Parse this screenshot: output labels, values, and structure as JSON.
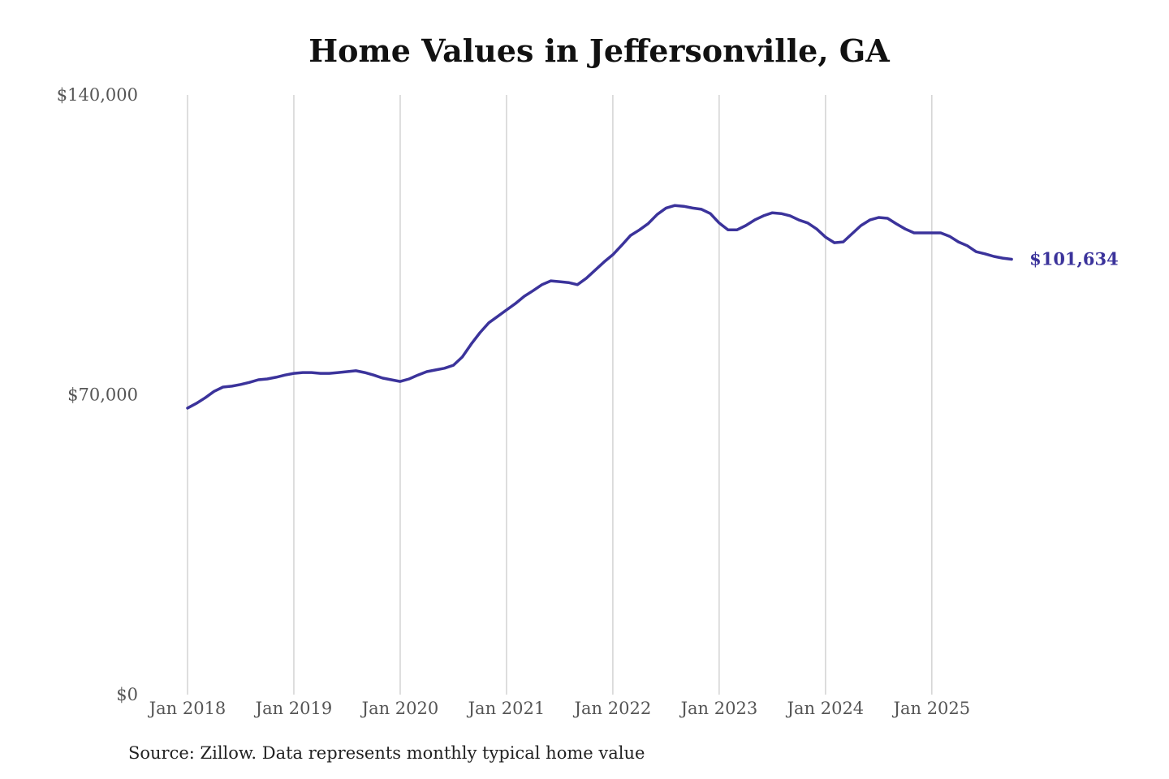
{
  "chart_data": {
    "type": "line",
    "title": "Home Values in Jeffersonville, GA",
    "source": "Source: Zillow. Data represents monthly typical home value",
    "xlabel": "",
    "ylabel": "",
    "ylim": [
      0,
      140000
    ],
    "y_ticks": [
      {
        "value": 0,
        "label": "$0"
      },
      {
        "value": 70000,
        "label": "$70,000"
      },
      {
        "value": 140000,
        "label": "$140,000"
      }
    ],
    "x_ticks": [
      {
        "date": "2018-01",
        "label": "Jan 2018"
      },
      {
        "date": "2019-01",
        "label": "Jan 2019"
      },
      {
        "date": "2020-01",
        "label": "Jan 2020"
      },
      {
        "date": "2021-01",
        "label": "Jan 2021"
      },
      {
        "date": "2022-01",
        "label": "Jan 2022"
      },
      {
        "date": "2023-01",
        "label": "Jan 2023"
      },
      {
        "date": "2024-01",
        "label": "Jan 2024"
      },
      {
        "date": "2025-01",
        "label": "Jan 2025"
      }
    ],
    "grid": "vertical",
    "line_color": "#3b339b",
    "end_label": "$101,634",
    "start_date": "2018-01",
    "series": [
      {
        "values": [
          66900,
          68000,
          69300,
          70800,
          71800,
          72000,
          72400,
          72900,
          73500,
          73700,
          74100,
          74600,
          75000,
          75200,
          75200,
          75000,
          75000,
          75200,
          75400,
          75600,
          75200,
          74600,
          73900,
          73500,
          73100,
          73700,
          74600,
          75400,
          75800,
          76200,
          76900,
          78800,
          81800,
          84500,
          86800,
          88300,
          89800,
          91300,
          93000,
          94300,
          95700,
          96600,
          96400,
          96200,
          95700,
          97200,
          99100,
          101000,
          102700,
          104900,
          107200,
          108500,
          110000,
          112100,
          113600,
          114200,
          114000,
          113600,
          113300,
          112300,
          110100,
          108500,
          108500,
          109500,
          110800,
          111800,
          112500,
          112300,
          111800,
          110800,
          110100,
          108700,
          106800,
          105500,
          105700,
          107600,
          109500,
          110800,
          111400,
          111200,
          109900,
          108700,
          107800,
          107800,
          107800,
          107800,
          107000,
          105700,
          104800,
          103400,
          102900,
          102300,
          101900,
          101634
        ]
      }
    ]
  }
}
